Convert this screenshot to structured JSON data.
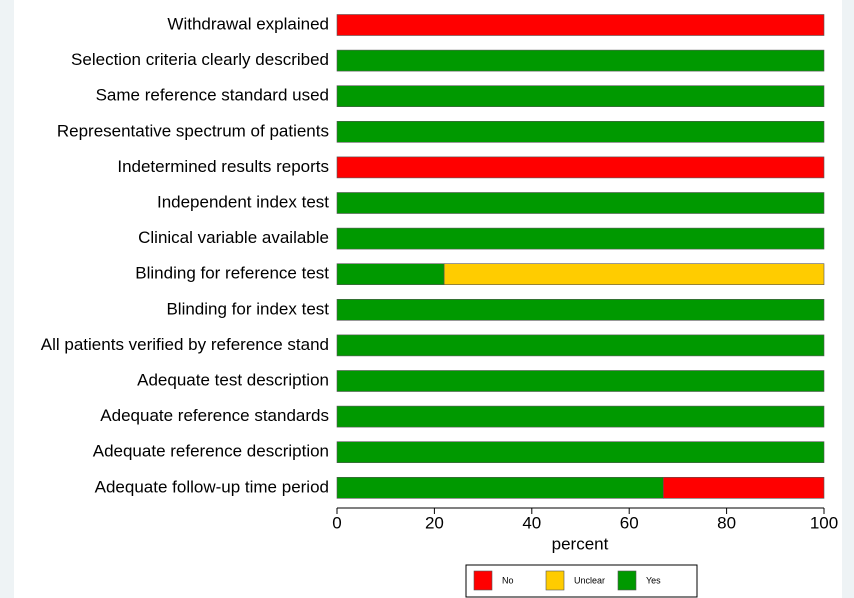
{
  "chart_data": {
    "type": "stacked-barh",
    "categories": [
      "Withdrawal explained",
      "Selection criteria clearly described",
      "Same reference standard used",
      "Representative spectrum of patients",
      "Indetermined results reports",
      "Independent index test",
      "Clinical variable available",
      "Blinding for reference test",
      "Blinding for index test",
      "All patients verified by reference stand",
      "Adequate test description",
      "Adequate reference standards",
      "Adequate reference description",
      "Adequate follow-up time period"
    ],
    "series": [
      {
        "name": "No",
        "color": "#ff0000",
        "values": [
          100,
          0,
          0,
          0,
          100,
          0,
          0,
          0,
          0,
          0,
          0,
          0,
          0,
          33
        ]
      },
      {
        "name": "Unclear",
        "color": "#ffcc00",
        "values": [
          0,
          0,
          0,
          0,
          0,
          0,
          0,
          78,
          0,
          0,
          0,
          0,
          0,
          0
        ]
      },
      {
        "name": "Yes",
        "color": "#009900",
        "values": [
          0,
          100,
          100,
          100,
          0,
          100,
          100,
          22,
          100,
          100,
          100,
          100,
          100,
          67
        ]
      }
    ],
    "xlabel": "percent",
    "xlim": [
      0,
      100
    ],
    "xticks": [
      0,
      20,
      40,
      60,
      80,
      100
    ],
    "legend": "bottom"
  }
}
